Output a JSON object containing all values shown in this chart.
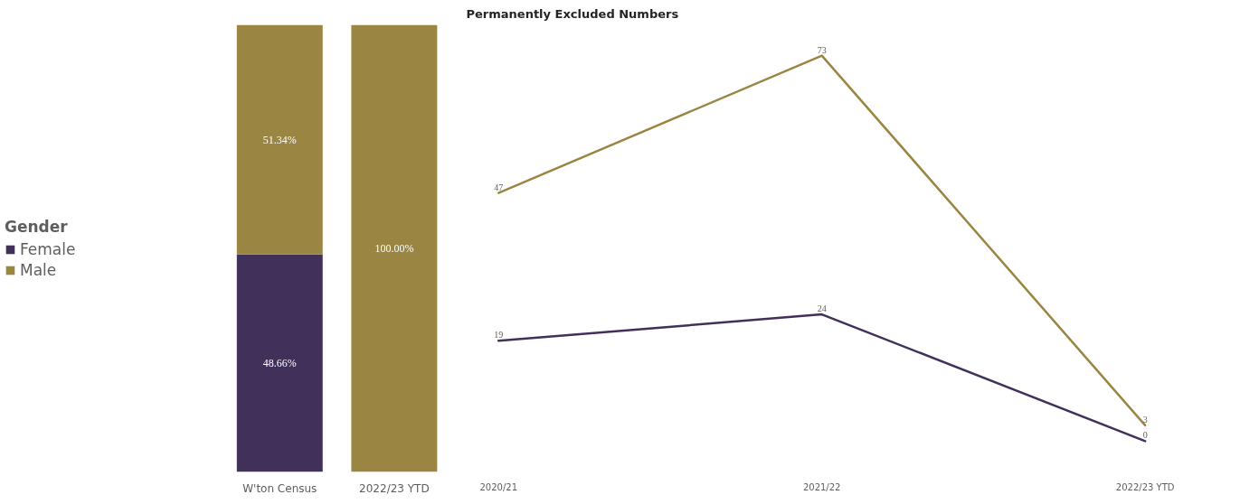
{
  "chart_data": [
    {
      "type": "bar",
      "stacked": true,
      "legend_title": "Gender",
      "legend": "left",
      "categories": [
        "W'ton Census",
        "2022/23 YTD"
      ],
      "series": [
        {
          "name": "Female",
          "color": "#40305a",
          "values": [
            48.66,
            0
          ],
          "value_labels": [
            "48.66%",
            null
          ]
        },
        {
          "name": "Male",
          "color": "#9a8642",
          "values": [
            51.34,
            100
          ],
          "value_labels": [
            "51.34%",
            "100.00%"
          ]
        }
      ]
    },
    {
      "type": "line",
      "title": "Permanently Excluded Numbers",
      "categories": [
        "2020/21",
        "2021/22",
        "2022/23 YTD"
      ],
      "data_labels": true,
      "series": [
        {
          "color": "#9a8642",
          "values": [
            47,
            73,
            3
          ]
        },
        {
          "color": "#40305a",
          "values": [
            19,
            24,
            0
          ]
        }
      ]
    }
  ]
}
